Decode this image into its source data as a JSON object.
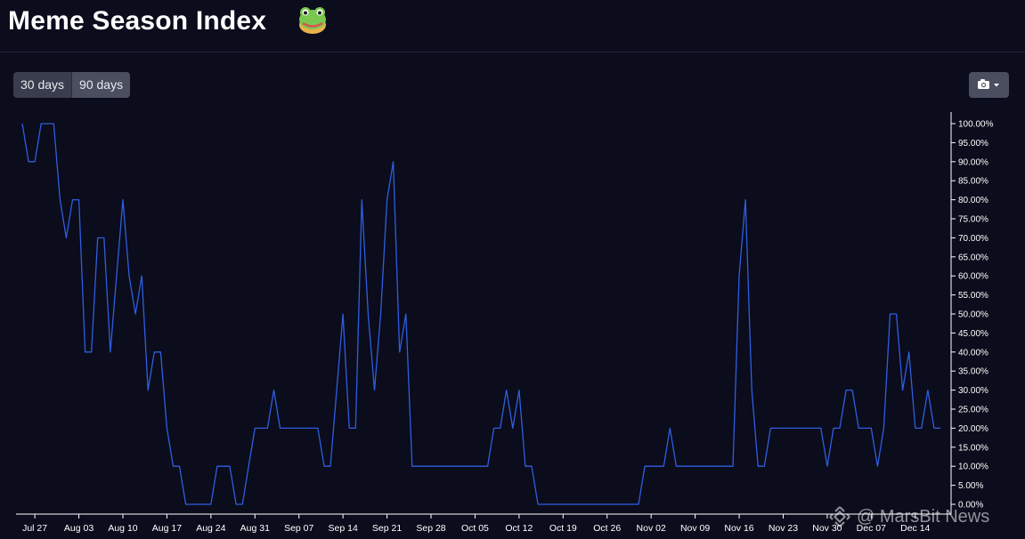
{
  "header": {
    "title": "Meme Season Index",
    "icon": "frog-emoji-icon"
  },
  "controls": {
    "ranges": [
      "30 days",
      "90 days"
    ],
    "selected_range": "90 days",
    "export_icon": "camera-icon"
  },
  "watermark": {
    "text": "@ MarsBit News",
    "icon": "binance-logo-icon"
  },
  "colors": {
    "background": "#0b0c1c",
    "line": "#2f5ee0",
    "axis": "#ffffff",
    "button": "#3a3d4d"
  },
  "chart_data": {
    "type": "line",
    "title": "",
    "xlabel": "",
    "ylabel": "",
    "ylim": [
      0,
      100
    ],
    "y_ticks": [
      "0.00%",
      "5.00%",
      "10.00%",
      "15.00%",
      "20.00%",
      "25.00%",
      "30.00%",
      "35.00%",
      "40.00%",
      "45.00%",
      "50.00%",
      "55.00%",
      "60.00%",
      "65.00%",
      "70.00%",
      "75.00%",
      "80.00%",
      "85.00%",
      "90.00%",
      "95.00%",
      "100.00%"
    ],
    "x_ticks": [
      "Jul 27",
      "Aug 03",
      "Aug 10",
      "Aug 17",
      "Aug 24",
      "Aug 31",
      "Sep 07",
      "Sep 14",
      "Sep 21",
      "Sep 28",
      "Oct 05",
      "Oct 12",
      "Oct 19",
      "Oct 26",
      "Nov 02",
      "Nov 09",
      "Nov 16",
      "Nov 23",
      "Nov 30",
      "Dec 07",
      "Dec 14"
    ],
    "x_start": "Jul 25",
    "x_end": "Dec 14",
    "y_axis_position": "right",
    "grid": false,
    "series": [
      {
        "values": [
          100,
          90,
          90,
          100,
          100,
          100,
          80,
          70,
          80,
          80,
          40,
          40,
          70,
          70,
          40,
          60,
          80,
          60,
          50,
          60,
          30,
          40,
          40,
          20,
          10,
          10,
          0,
          0,
          0,
          0,
          0,
          10,
          10,
          10,
          0,
          0,
          10,
          20,
          20,
          20,
          30,
          20,
          20,
          20,
          20,
          20,
          20,
          20,
          10,
          10,
          30,
          50,
          20,
          20,
          80,
          50,
          30,
          50,
          80,
          90,
          40,
          50,
          10,
          10,
          10,
          10,
          10,
          10,
          10,
          10,
          10,
          10,
          10,
          10,
          10,
          20,
          20,
          30,
          20,
          30,
          10,
          10,
          0,
          0,
          0,
          0,
          0,
          0,
          0,
          0,
          0,
          0,
          0,
          0,
          0,
          0,
          0,
          0,
          0,
          10,
          10,
          10,
          10,
          20,
          10,
          10,
          10,
          10,
          10,
          10,
          10,
          10,
          10,
          10,
          60,
          80,
          30,
          10,
          10,
          20,
          20,
          20,
          20,
          20,
          20,
          20,
          20,
          20,
          10,
          20,
          20,
          30,
          30,
          20,
          20,
          20,
          10,
          20,
          50,
          50,
          30,
          40,
          20,
          20,
          30,
          20,
          20
        ]
      }
    ]
  }
}
